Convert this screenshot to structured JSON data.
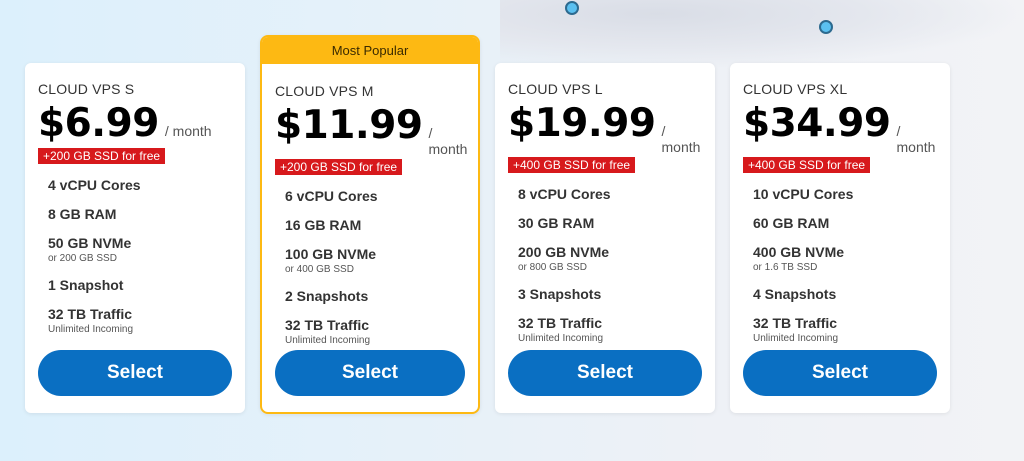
{
  "plans": [
    {
      "name": "CLOUD VPS S",
      "price": "$6.99",
      "period": "/ month",
      "badge": "+200 GB SSD for free",
      "features": [
        {
          "t": "4 vCPU Cores"
        },
        {
          "t": "8 GB RAM"
        },
        {
          "t": "50 GB NVMe",
          "s": "or 200 GB SSD"
        },
        {
          "t": "1 Snapshot"
        },
        {
          "t": "32 TB Traffic",
          "s": "Unlimited Incoming"
        }
      ],
      "button": "Select"
    },
    {
      "name": "CLOUD VPS M",
      "ribbon": "Most Popular",
      "price": "$11.99",
      "period": "/ month",
      "badge": "+200 GB SSD for free",
      "features": [
        {
          "t": "6 vCPU Cores"
        },
        {
          "t": "16 GB RAM"
        },
        {
          "t": "100 GB NVMe",
          "s": "or 400 GB SSD"
        },
        {
          "t": "2 Snapshots"
        },
        {
          "t": "32 TB Traffic",
          "s": "Unlimited Incoming"
        }
      ],
      "button": "Select"
    },
    {
      "name": "CLOUD VPS L",
      "price": "$19.99",
      "period": "/ month",
      "badge": "+400 GB SSD for free",
      "features": [
        {
          "t": "8 vCPU Cores"
        },
        {
          "t": "30 GB RAM"
        },
        {
          "t": "200 GB NVMe",
          "s": "or 800 GB SSD"
        },
        {
          "t": "3 Snapshots"
        },
        {
          "t": "32 TB Traffic",
          "s": "Unlimited Incoming"
        }
      ],
      "button": "Select"
    },
    {
      "name": "CLOUD VPS XL",
      "price": "$34.99",
      "period": "/ month",
      "badge": "+400 GB SSD for free",
      "features": [
        {
          "t": "10 vCPU Cores"
        },
        {
          "t": "60 GB RAM"
        },
        {
          "t": "400 GB NVMe",
          "s": "or 1.6 TB SSD"
        },
        {
          "t": "4 Snapshots"
        },
        {
          "t": "32 TB Traffic",
          "s": "Unlimited Incoming"
        }
      ],
      "button": "Select"
    }
  ],
  "colors": {
    "accent": "#0a6fc2",
    "popular": "#fdb913",
    "badge": "#d7191c"
  }
}
